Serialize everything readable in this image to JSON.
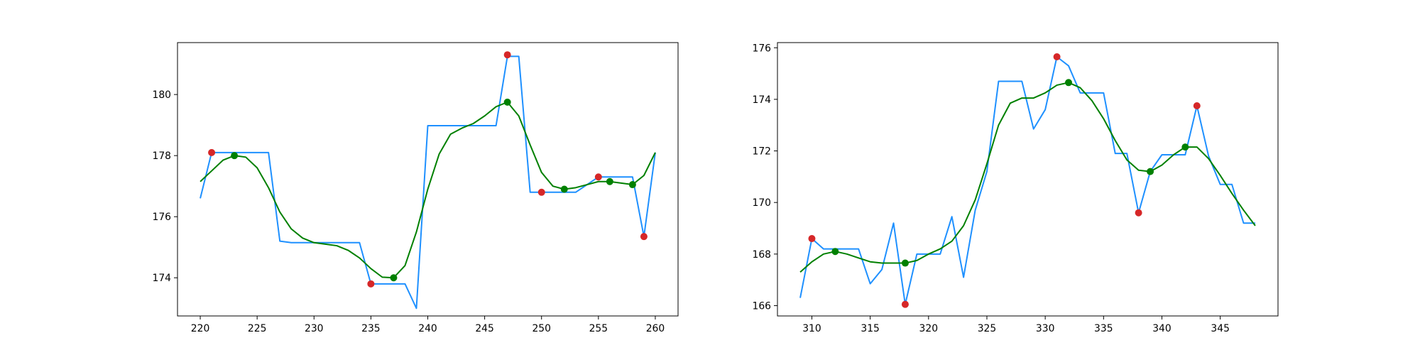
{
  "chart_data": [
    {
      "type": "line",
      "xlim": [
        218,
        262
      ],
      "ylim": [
        172.75,
        181.7
      ],
      "xticks": [
        220,
        225,
        230,
        235,
        240,
        245,
        250,
        255,
        260
      ],
      "yticks": [
        174,
        176,
        178,
        180
      ],
      "grid": false,
      "series": [
        {
          "kind": "line",
          "color": "#1e90ff",
          "x": [
            220,
            221,
            222,
            223,
            224,
            225,
            226,
            227,
            228,
            229,
            230,
            231,
            232,
            233,
            234,
            235,
            236,
            237,
            238,
            239,
            240,
            241,
            242,
            243,
            244,
            245,
            246,
            247,
            248,
            249,
            250,
            251,
            252,
            253,
            254,
            255,
            256,
            257,
            258,
            259,
            260
          ],
          "y": [
            176.6,
            178.1,
            178.1,
            178.1,
            178.1,
            178.1,
            178.1,
            175.2,
            175.15,
            175.15,
            175.15,
            175.15,
            175.15,
            175.15,
            175.15,
            173.8,
            173.8,
            173.8,
            173.8,
            173.0,
            178.98,
            178.98,
            178.98,
            178.98,
            178.98,
            178.98,
            178.98,
            181.25,
            181.25,
            176.8,
            176.8,
            176.8,
            176.8,
            176.8,
            177.05,
            177.3,
            177.3,
            177.3,
            177.3,
            175.35,
            178.1
          ]
        },
        {
          "kind": "line",
          "color": "#008000",
          "x": [
            220,
            221,
            222,
            223,
            224,
            225,
            226,
            227,
            228,
            229,
            230,
            231,
            232,
            233,
            234,
            235,
            236,
            237,
            238,
            239,
            240,
            241,
            242,
            243,
            244,
            245,
            246,
            247,
            248,
            249,
            250,
            251,
            252,
            253,
            254,
            255,
            256,
            257,
            258,
            259,
            260
          ],
          "y": [
            177.15,
            177.5,
            177.85,
            178.0,
            177.95,
            177.6,
            176.95,
            176.15,
            175.6,
            175.3,
            175.15,
            175.1,
            175.05,
            174.9,
            174.65,
            174.3,
            174.02,
            174.0,
            174.4,
            175.5,
            176.9,
            178.05,
            178.7,
            178.9,
            179.05,
            179.3,
            179.6,
            179.75,
            179.3,
            178.35,
            177.45,
            177.0,
            176.9,
            176.95,
            177.05,
            177.15,
            177.15,
            177.1,
            177.05,
            177.35,
            178.1
          ]
        },
        {
          "kind": "scatter",
          "color": "#d62728",
          "points": [
            [
              221,
              178.1
            ],
            [
              235,
              173.8
            ],
            [
              247,
              181.3
            ],
            [
              250,
              176.8
            ],
            [
              255,
              177.3
            ],
            [
              259,
              175.35
            ]
          ]
        },
        {
          "kind": "scatter",
          "color": "#008000",
          "points": [
            [
              223,
              178.0
            ],
            [
              237,
              174.0
            ],
            [
              247,
              179.75
            ],
            [
              252,
              176.9
            ],
            [
              256,
              177.15
            ],
            [
              258,
              177.05
            ]
          ]
        }
      ]
    },
    {
      "type": "line",
      "xlim": [
        307.05,
        349.95
      ],
      "ylim": [
        165.6,
        176.2
      ],
      "xticks": [
        310,
        315,
        320,
        325,
        330,
        335,
        340,
        345
      ],
      "yticks": [
        166,
        168,
        170,
        172,
        174,
        176
      ],
      "grid": false,
      "series": [
        {
          "kind": "line",
          "color": "#1e90ff",
          "x": [
            309,
            310,
            311,
            312,
            313,
            314,
            315,
            316,
            317,
            318,
            319,
            320,
            321,
            322,
            323,
            324,
            325,
            326,
            327,
            328,
            329,
            330,
            331,
            332,
            333,
            334,
            335,
            336,
            337,
            338,
            339,
            340,
            341,
            342,
            343,
            344,
            345,
            346,
            347,
            348
          ],
          "y": [
            166.3,
            168.6,
            168.2,
            168.2,
            168.2,
            168.2,
            166.85,
            167.4,
            169.2,
            166.05,
            168.0,
            168.0,
            168.0,
            169.45,
            167.1,
            169.7,
            171.2,
            174.7,
            174.7,
            174.7,
            172.85,
            173.6,
            175.65,
            175.3,
            174.25,
            174.25,
            174.25,
            171.9,
            171.9,
            169.6,
            171.2,
            171.85,
            171.85,
            171.85,
            173.75,
            171.8,
            170.7,
            170.7,
            169.2,
            169.2
          ]
        },
        {
          "kind": "line",
          "color": "#008000",
          "x": [
            309,
            310,
            311,
            312,
            313,
            314,
            315,
            316,
            317,
            318,
            319,
            320,
            321,
            322,
            323,
            324,
            325,
            326,
            327,
            328,
            329,
            330,
            331,
            332,
            333,
            334,
            335,
            336,
            337,
            338,
            339,
            340,
            341,
            342,
            343,
            344,
            345,
            346,
            347,
            348
          ],
          "y": [
            167.3,
            167.7,
            168.0,
            168.1,
            168.0,
            167.85,
            167.7,
            167.65,
            167.65,
            167.65,
            167.75,
            168.0,
            168.2,
            168.5,
            169.1,
            170.1,
            171.5,
            173.0,
            173.85,
            174.05,
            174.05,
            174.25,
            174.55,
            174.65,
            174.45,
            173.95,
            173.25,
            172.4,
            171.65,
            171.25,
            171.2,
            171.45,
            171.85,
            172.15,
            172.15,
            171.7,
            171.05,
            170.35,
            169.7,
            169.1
          ]
        },
        {
          "kind": "scatter",
          "color": "#d62728",
          "points": [
            [
              310,
              168.6
            ],
            [
              318,
              166.05
            ],
            [
              331,
              175.65
            ],
            [
              338,
              169.6
            ],
            [
              343,
              173.75
            ]
          ]
        },
        {
          "kind": "scatter",
          "color": "#008000",
          "points": [
            [
              312,
              168.1
            ],
            [
              318,
              167.65
            ],
            [
              332,
              174.65
            ],
            [
              339,
              171.2
            ],
            [
              342,
              172.15
            ]
          ]
        }
      ]
    }
  ]
}
